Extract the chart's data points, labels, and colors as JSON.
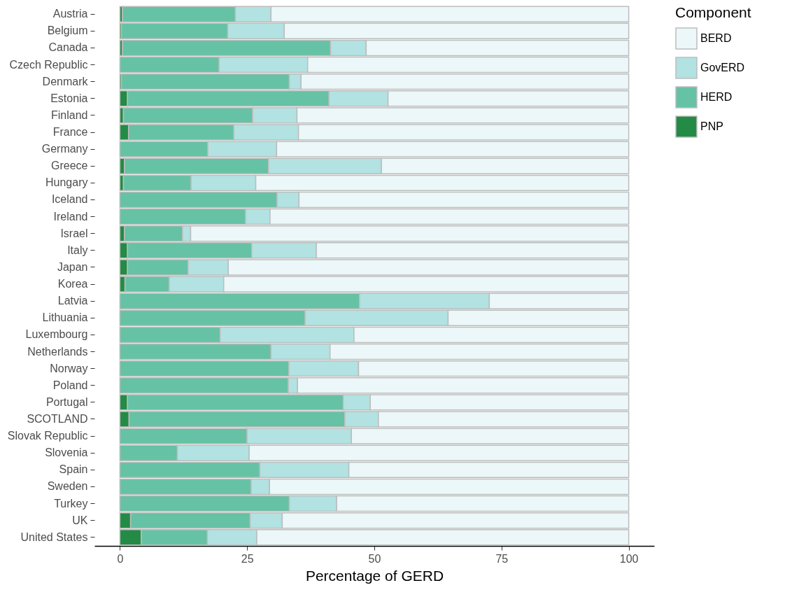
{
  "chart_data": {
    "type": "bar",
    "orientation": "horizontal",
    "stacked": true,
    "xlabel": "Percentage of GERD",
    "legend_title": "Component",
    "legend": "right",
    "grid": false,
    "categories": [
      "Austria",
      "Belgium",
      "Canada",
      "Czech Republic",
      "Denmark",
      "Estonia",
      "Finland",
      "France",
      "Germany",
      "Greece",
      "Hungary",
      "Iceland",
      "Ireland",
      "Israel",
      "Italy",
      "Japan",
      "Korea",
      "Latvia",
      "Lithuania",
      "Luxembourg",
      "Netherlands",
      "Norway",
      "Poland",
      "Portugal",
      "SCOTLAND",
      "Slovak Republic",
      "Slovenia",
      "Spain",
      "Sweden",
      "Turkey",
      "UK",
      "United States"
    ],
    "xlim": [
      -5,
      105
    ],
    "xticks": [
      0,
      25,
      50,
      75,
      100
    ],
    "series": [
      {
        "name": "PNP",
        "color": "#238b45",
        "values": [
          0.5,
          0.3,
          0.5,
          0,
          0.3,
          1.5,
          0.7,
          1.7,
          0,
          0.9,
          0.7,
          0,
          0,
          0.9,
          1.5,
          1.5,
          1.0,
          0,
          0,
          0,
          0,
          0,
          0,
          1.5,
          1.8,
          0,
          0,
          0,
          0,
          0,
          2.1,
          4.2
        ]
      },
      {
        "name": "HERD",
        "color": "#66c2a4",
        "values": [
          22.2,
          20.9,
          40.9,
          19.5,
          33.0,
          39.6,
          25.4,
          20.7,
          17.3,
          28.3,
          13.3,
          30.9,
          24.7,
          11.4,
          24.4,
          11.9,
          8.7,
          47.1,
          36.4,
          19.7,
          29.7,
          33.2,
          33.1,
          42.4,
          42.4,
          25.0,
          11.3,
          27.5,
          25.8,
          33.3,
          23.5,
          13.0
        ]
      },
      {
        "name": "GovERD",
        "color": "#b2e2e2",
        "values": [
          7.0,
          11.1,
          7.0,
          17.4,
          2.3,
          11.6,
          8.7,
          12.7,
          13.5,
          22.2,
          12.7,
          4.3,
          4.8,
          1.6,
          12.7,
          7.9,
          10.7,
          25.5,
          28.1,
          26.3,
          11.6,
          13.7,
          1.8,
          5.3,
          6.6,
          20.5,
          14.1,
          17.5,
          3.6,
          9.3,
          6.3,
          9.7
        ]
      },
      {
        "name": "BERD",
        "color": "#ebf7f8",
        "values": [
          70.3,
          67.7,
          51.6,
          63.1,
          64.4,
          47.3,
          65.2,
          64.9,
          69.2,
          48.6,
          73.3,
          64.8,
          70.5,
          86.1,
          61.4,
          78.7,
          79.6,
          27.4,
          35.5,
          54.0,
          58.7,
          53.1,
          65.1,
          50.8,
          49.2,
          54.5,
          74.6,
          55.0,
          70.6,
          57.4,
          68.1,
          73.1
        ]
      }
    ]
  }
}
